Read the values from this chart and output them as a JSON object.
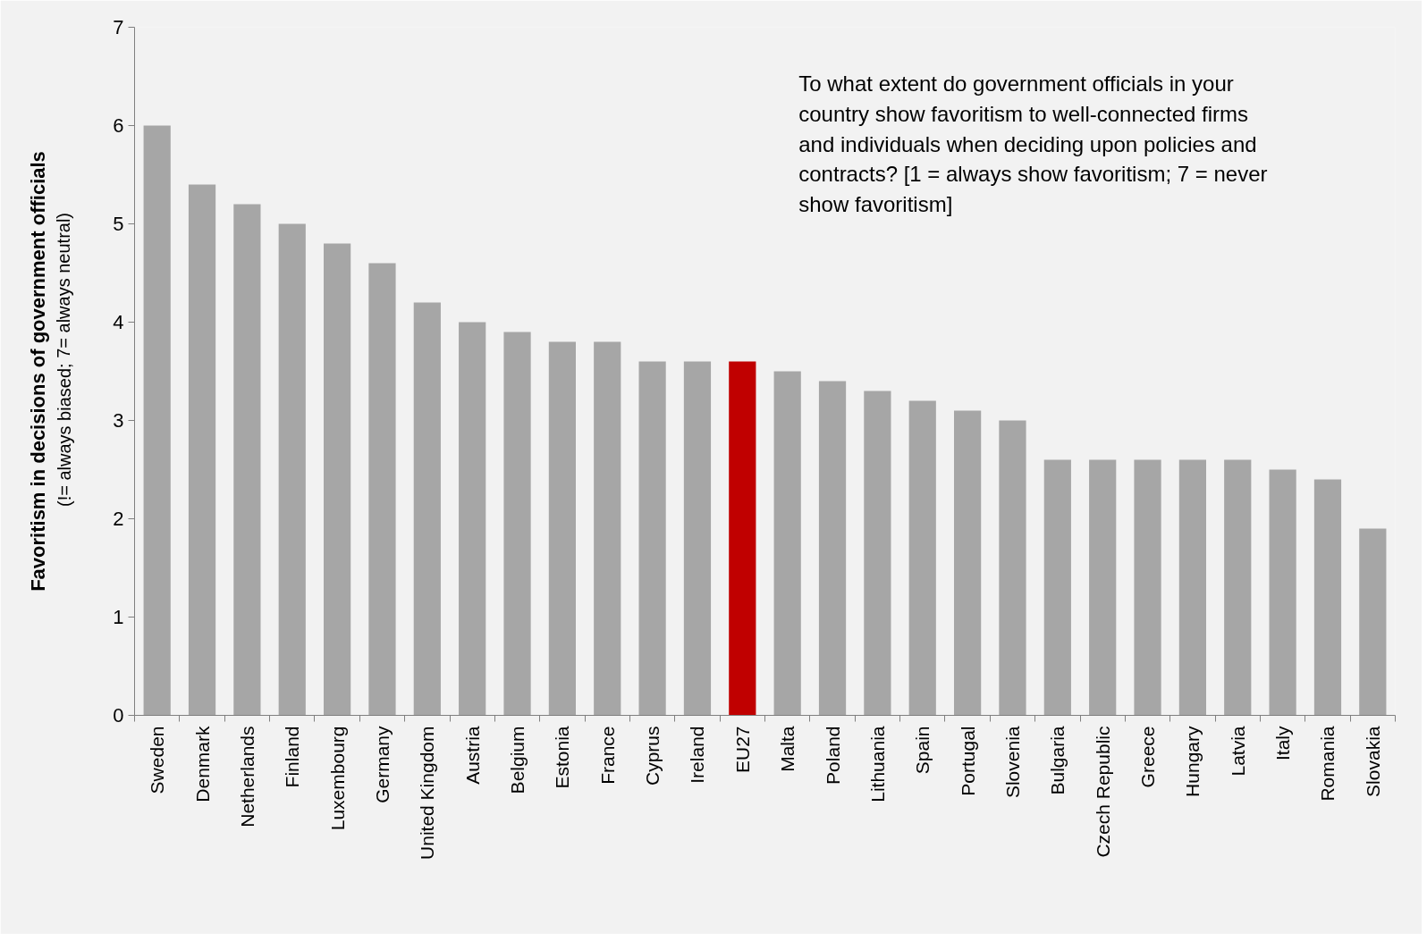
{
  "chart_data": {
    "type": "bar",
    "ylabel": "Favoritism in decisions of government officials",
    "categories": [
      "Sweden",
      "Denmark",
      "Netherlands",
      "Finland",
      "Luxembourg",
      "Germany",
      "United Kingdom",
      "Austria",
      "Belgium",
      "Estonia",
      "France",
      "Cyprus",
      "Ireland",
      "EU27",
      "Malta",
      "Poland",
      "Lithuania",
      "Spain",
      "Portugal",
      "Slovenia",
      "Bulgaria",
      "Czech Republic",
      "Greece",
      "Hungary",
      "Latvia",
      "Italy",
      "Romania",
      "Slovakia"
    ],
    "values": [
      6.0,
      5.4,
      5.2,
      5.0,
      4.8,
      4.6,
      4.2,
      4.0,
      3.9,
      3.8,
      3.8,
      3.6,
      3.6,
      3.6,
      3.5,
      3.4,
      3.3,
      3.2,
      3.1,
      3.0,
      2.6,
      2.6,
      2.6,
      2.6,
      2.6,
      2.5,
      2.4,
      1.9
    ],
    "colors": [
      "#a6a6a6",
      "#a6a6a6",
      "#a6a6a6",
      "#a6a6a6",
      "#a6a6a6",
      "#a6a6a6",
      "#a6a6a6",
      "#a6a6a6",
      "#a6a6a6",
      "#a6a6a6",
      "#a6a6a6",
      "#a6a6a6",
      "#a6a6a6",
      "#c00000",
      "#a6a6a6",
      "#a6a6a6",
      "#a6a6a6",
      "#a6a6a6",
      "#a6a6a6",
      "#a6a6a6",
      "#a6a6a6",
      "#a6a6a6",
      "#a6a6a6",
      "#a6a6a6",
      "#a6a6a6",
      "#a6a6a6",
      "#a6a6a6",
      "#a6a6a6"
    ],
    "ylim": [
      0,
      7
    ],
    "yticks": [
      0,
      1,
      2,
      3,
      4,
      5,
      6,
      7
    ],
    "grid": false,
    "annotations": [
      "(!= always biased; 7= always neutral)",
      " To what extent do government officials in your\ncountry show favoritism to well-connected firms\nand individuals when deciding upon policies and\ncontracts? [1 = always show favoritism; 7 = never\nshow favoritism]"
    ]
  }
}
